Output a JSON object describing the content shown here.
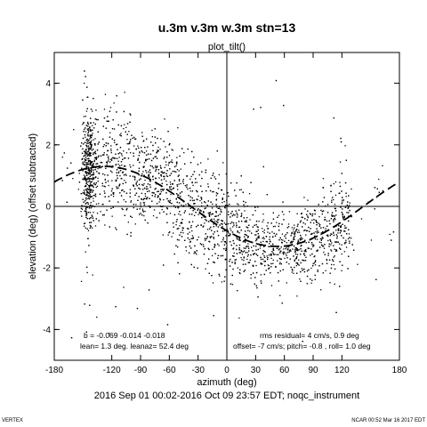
{
  "chart_data": {
    "type": "scatter",
    "title": "u.3m v.3m w.3m stn=13",
    "subtitle": "plot_tilt()",
    "xlabel": "azimuth (deg)",
    "ylabel": "elevation (deg)  (offset subtracted)",
    "xlim": [
      -180,
      180
    ],
    "ylim": [
      -5,
      5
    ],
    "x_ticks": [
      -180,
      -120,
      -90,
      -60,
      -30,
      0,
      30,
      60,
      90,
      120,
      180
    ],
    "x_tick_labels": [
      "-180",
      "-120",
      "-90",
      "-60",
      "-30",
      "0",
      "30",
      "60",
      "90",
      "120",
      "180"
    ],
    "y_ticks": [
      -4,
      -2,
      0,
      2,
      4
    ],
    "y_tick_labels": [
      "-4",
      "-2",
      "0",
      "2",
      "4"
    ],
    "grid": false,
    "zero_lines": true,
    "fit_curve": {
      "style": "dashed",
      "lean_deg": 1.3,
      "leanaz_deg": 52.4,
      "description": "elevation = -lean * cos(azimuth - leanaz)"
    },
    "points_note": "dense scatter cloud of per-sample (azimuth, elevation) values, clustered around the fitted curve",
    "annotations": {
      "b_line": "b = -0.069 -0.014 -0.018",
      "lean_line": "lean= 1.3 deg. leanaz= 52.4 deg",
      "rms_line": "rms residual= 4 cm/s,  0.9 deg",
      "offset_line": "offset= -7 cm/s; pitch= -0.8 , roll=  1.0 deg"
    },
    "time_range": "2016 Sep 01 00:02-2016 Oct 09 23:57 EDT; noqc_instrument",
    "footer_left": "VERTEX",
    "footer_right": "NCAR 00:52 Mar 16 2017 EDT"
  }
}
